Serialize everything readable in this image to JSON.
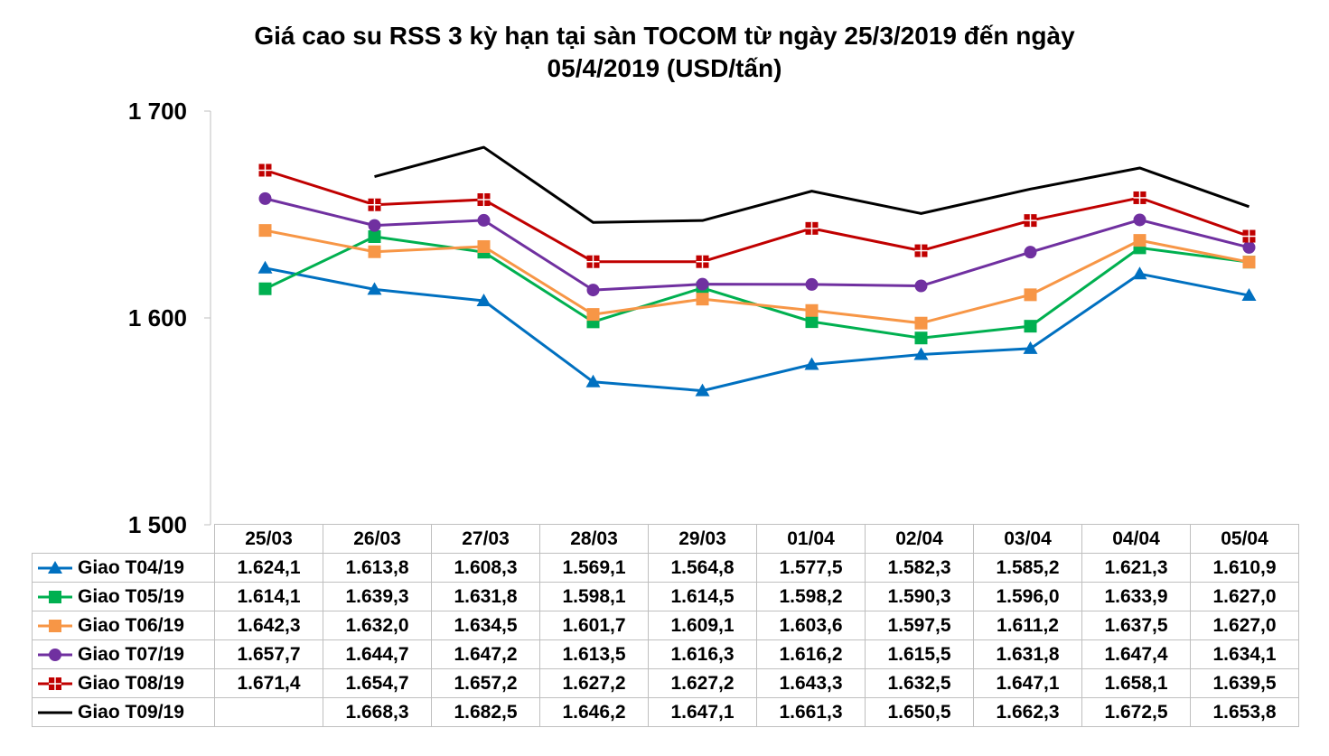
{
  "chart_data": {
    "type": "line",
    "title": "Giá cao su RSS 3 kỳ hạn tại sàn TOCOM từ ngày 25/3/2019  đến ngày",
    "subtitle": "05/4/2019  (USD/tấn)",
    "categories": [
      "25/03",
      "26/03",
      "27/03",
      "28/03",
      "29/03",
      "01/04",
      "02/04",
      "03/04",
      "04/04",
      "05/04"
    ],
    "ylim": [
      1500,
      1700
    ],
    "yticks": [
      1500,
      1600,
      1700
    ],
    "ytick_labels": [
      "1 500",
      "1 600",
      "1 700"
    ],
    "grid": false,
    "legend": "data-table",
    "series": [
      {
        "name": "Giao  T04/19",
        "color": "#0070c0",
        "marker": "triangle",
        "values": [
          1624.1,
          1613.8,
          1608.3,
          1569.1,
          1564.8,
          1577.5,
          1582.3,
          1585.2,
          1621.3,
          1610.9
        ],
        "labels": [
          "1.624,1",
          "1.613,8",
          "1.608,3",
          "1.569,1",
          "1.564,8",
          "1.577,5",
          "1.582,3",
          "1.585,2",
          "1.621,3",
          "1.610,9"
        ]
      },
      {
        "name": "Giao  T05/19",
        "color": "#00b050",
        "marker": "square",
        "values": [
          1614.1,
          1639.3,
          1631.8,
          1598.1,
          1614.5,
          1598.2,
          1590.3,
          1596.0,
          1633.9,
          1627.0
        ],
        "labels": [
          "1.614,1",
          "1.639,3",
          "1.631,8",
          "1.598,1",
          "1.614,5",
          "1.598,2",
          "1.590,3",
          "1.596,0",
          "1.633,9",
          "1.627,0"
        ]
      },
      {
        "name": "Giao  T06/19",
        "color": "#f79646",
        "marker": "square",
        "values": [
          1642.3,
          1632.0,
          1634.5,
          1601.7,
          1609.1,
          1603.6,
          1597.5,
          1611.2,
          1637.5,
          1627.0
        ],
        "labels": [
          "1.642,3",
          "1.632,0",
          "1.634,5",
          "1.601,7",
          "1.609,1",
          "1.603,6",
          "1.597,5",
          "1.611,2",
          "1.637,5",
          "1.627,0"
        ]
      },
      {
        "name": "Giao  T07/19",
        "color": "#7030a0",
        "marker": "circle",
        "values": [
          1657.7,
          1644.7,
          1647.2,
          1613.5,
          1616.3,
          1616.2,
          1615.5,
          1631.8,
          1647.4,
          1634.1
        ],
        "labels": [
          "1.657,7",
          "1.644,7",
          "1.647,2",
          "1.613,5",
          "1.616,3",
          "1.616,2",
          "1.615,5",
          "1.631,8",
          "1.647,4",
          "1.634,1"
        ]
      },
      {
        "name": "Giao  T08/19",
        "color": "#c00000",
        "marker": "plus-square",
        "values": [
          1671.4,
          1654.7,
          1657.2,
          1627.2,
          1627.2,
          1643.3,
          1632.5,
          1647.1,
          1658.1,
          1639.5
        ],
        "labels": [
          "1.671,4",
          "1.654,7",
          "1.657,2",
          "1.627,2",
          "1.627,2",
          "1.643,3",
          "1.632,5",
          "1.647,1",
          "1.658,1",
          "1.639,5"
        ]
      },
      {
        "name": "Giao  T09/19",
        "color": "#000000",
        "marker": "none",
        "values": [
          null,
          1668.3,
          1682.5,
          1646.2,
          1647.1,
          1661.3,
          1650.5,
          1662.3,
          1672.5,
          1653.8
        ],
        "labels": [
          "",
          "1.668,3",
          "1.682,5",
          "1.646,2",
          "1.647,1",
          "1.661,3",
          "1.650,5",
          "1.662,3",
          "1.672,5",
          "1.653,8"
        ]
      }
    ]
  }
}
